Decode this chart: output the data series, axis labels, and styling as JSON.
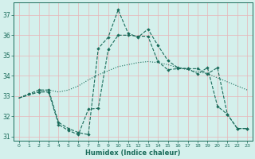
{
  "title": "",
  "xlabel": "Humidex (Indice chaleur)",
  "background_color": "#d4f0ec",
  "grid_color": "#e8b4b8",
  "line_color": "#1a6b5a",
  "xlim": [
    -0.5,
    23.5
  ],
  "ylim": [
    30.8,
    37.6
  ],
  "yticks": [
    31,
    32,
    33,
    34,
    35,
    36,
    37
  ],
  "xticks": [
    0,
    1,
    2,
    3,
    4,
    5,
    6,
    7,
    8,
    9,
    10,
    11,
    12,
    13,
    14,
    15,
    16,
    17,
    18,
    19,
    20,
    21,
    22,
    23
  ],
  "line1_x": [
    0,
    1,
    2,
    3,
    4,
    5,
    6,
    7,
    8,
    9,
    10,
    11,
    12,
    13,
    14,
    15,
    16,
    17,
    18,
    19,
    20,
    21,
    22,
    23
  ],
  "line1_y": [
    32.9,
    33.1,
    33.2,
    33.3,
    33.2,
    33.3,
    33.5,
    33.8,
    34.05,
    34.25,
    34.45,
    34.55,
    34.65,
    34.7,
    34.65,
    34.55,
    34.4,
    34.3,
    34.2,
    34.1,
    33.9,
    33.7,
    33.5,
    33.3
  ],
  "line2_x": [
    0,
    1,
    2,
    3,
    4,
    5,
    6,
    7,
    8,
    9,
    10,
    11,
    12,
    13,
    14,
    15,
    16,
    17,
    18,
    19,
    20,
    21,
    22,
    23
  ],
  "line2_y": [
    32.9,
    33.1,
    33.3,
    33.3,
    31.7,
    31.4,
    31.2,
    31.1,
    35.35,
    35.9,
    37.25,
    36.1,
    35.9,
    36.3,
    35.5,
    34.75,
    34.4,
    34.35,
    34.35,
    34.1,
    34.4,
    32.1,
    31.4,
    31.4
  ],
  "line3_x": [
    0,
    2,
    3,
    4,
    5,
    6,
    7,
    8,
    9,
    10,
    11,
    12,
    13,
    14,
    15,
    16,
    17,
    18,
    19,
    20,
    21,
    22,
    23
  ],
  "line3_y": [
    32.9,
    33.2,
    33.2,
    31.6,
    31.3,
    31.1,
    32.35,
    32.4,
    35.3,
    36.0,
    36.0,
    35.95,
    35.95,
    34.7,
    34.3,
    34.35,
    34.35,
    34.1,
    34.4,
    32.5,
    32.1,
    31.4,
    31.4
  ],
  "line2_marker_x": [
    1,
    2,
    3,
    4,
    5,
    6,
    7,
    8,
    9,
    10,
    11,
    12,
    13,
    14,
    15,
    16,
    17,
    18,
    19,
    20,
    21,
    22,
    23
  ],
  "line2_marker_y": [
    33.1,
    33.3,
    33.3,
    31.7,
    31.4,
    31.2,
    31.1,
    35.35,
    35.9,
    37.25,
    36.1,
    35.9,
    36.3,
    35.5,
    34.75,
    34.4,
    34.35,
    34.35,
    34.1,
    34.4,
    32.1,
    31.4,
    31.4
  ],
  "line3_marker_x": [
    2,
    3,
    4,
    5,
    6,
    7,
    8,
    9,
    10,
    11,
    12,
    13,
    14,
    15,
    16,
    17,
    18,
    19,
    20,
    21,
    22,
    23
  ],
  "line3_marker_y": [
    33.2,
    33.2,
    31.6,
    31.3,
    31.1,
    32.35,
    32.4,
    35.3,
    36.0,
    36.0,
    35.95,
    35.95,
    34.7,
    34.3,
    34.35,
    34.35,
    34.1,
    34.4,
    32.5,
    32.1,
    31.4,
    31.4
  ]
}
